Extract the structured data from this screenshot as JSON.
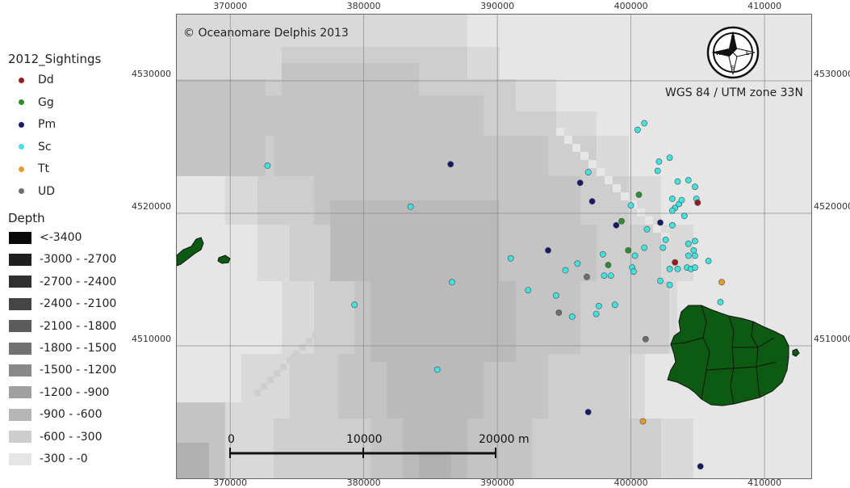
{
  "legend": {
    "sightings_title": "2012_Sightings",
    "species": [
      {
        "code": "Dd",
        "color": "#9c1c1c"
      },
      {
        "code": "Gg",
        "color": "#2f8f2f"
      },
      {
        "code": "Pm",
        "color": "#161a6e"
      },
      {
        "code": "Sc",
        "color": "#3fe3e0"
      },
      {
        "code": "Tt",
        "color": "#e89b2a"
      },
      {
        "code": "UD",
        "color": "#6e6e6e"
      }
    ],
    "depth_title": "Depth",
    "depth_classes": [
      {
        "label": "<-3400",
        "color": "#0a0a0a"
      },
      {
        "label": "-3000 - -2700",
        "color": "#1f1f1f"
      },
      {
        "label": "-2700 - -2400",
        "color": "#2f2f2f"
      },
      {
        "label": "-2400 - -2100",
        "color": "#454545"
      },
      {
        "label": "-2100 - -1800",
        "color": "#5c5c5c"
      },
      {
        "label": "-1800 - -1500",
        "color": "#727272"
      },
      {
        "label": "-1500 - -1200",
        "color": "#898989"
      },
      {
        "label": "-1200 - -900",
        "color": "#a0a0a0"
      },
      {
        "label": "-900 - -600",
        "color": "#b6b6b6"
      },
      {
        "label": "-600 - -300",
        "color": "#cdcdcd"
      },
      {
        "label": "-300 - -0",
        "color": "#e5e5e5"
      }
    ]
  },
  "map": {
    "copyright": "© Oceanomare Delphis 2013",
    "crs": "WGS 84 / UTM zone 33N",
    "land_color": "#0d5a12",
    "easting_ticks": [
      "370000",
      "380000",
      "390000",
      "400000",
      "410000"
    ],
    "northing_ticks": [
      "4530000",
      "4520000",
      "4510000"
    ],
    "scale_bar": {
      "labels": [
        "0",
        "10000",
        "20000 m"
      ]
    }
  },
  "chart_data": {
    "type": "scatter",
    "title": "",
    "xlabel": "",
    "ylabel": "",
    "xlim": [
      366000,
      413500
    ],
    "ylim": [
      4500000,
      4535000
    ],
    "series": [
      {
        "name": "Dd",
        "points": [
          [
            405000,
            4520800
          ],
          [
            403300,
            4516300
          ]
        ]
      },
      {
        "name": "Gg",
        "points": [
          [
            400600,
            4521400
          ],
          [
            399300,
            4519400
          ],
          [
            399800,
            4517200
          ],
          [
            398300,
            4516100
          ]
        ]
      },
      {
        "name": "Pm",
        "points": [
          [
            386500,
            4523700
          ],
          [
            396200,
            4522300
          ],
          [
            397100,
            4520900
          ],
          [
            398900,
            4519100
          ],
          [
            402200,
            4519300
          ],
          [
            393800,
            4517200
          ],
          [
            396800,
            4505000
          ],
          [
            405200,
            4500900
          ]
        ]
      },
      {
        "name": "Sc",
        "points": [
          [
            372800,
            4523600
          ],
          [
            383500,
            4520500
          ],
          [
            386600,
            4514800
          ],
          [
            379300,
            4513100
          ],
          [
            385500,
            4508200
          ],
          [
            391000,
            4516600
          ],
          [
            392300,
            4514200
          ],
          [
            394400,
            4513800
          ],
          [
            395100,
            4515700
          ],
          [
            396000,
            4516200
          ],
          [
            397400,
            4512400
          ],
          [
            397600,
            4513000
          ],
          [
            395600,
            4512200
          ],
          [
            398000,
            4515300
          ],
          [
            398500,
            4515300
          ],
          [
            398800,
            4513100
          ],
          [
            397900,
            4516900
          ],
          [
            396800,
            4523100
          ],
          [
            401000,
            4526800
          ],
          [
            400500,
            4526300
          ],
          [
            402100,
            4523900
          ],
          [
            402000,
            4523200
          ],
          [
            402900,
            4524200
          ],
          [
            403500,
            4522400
          ],
          [
            404300,
            4522500
          ],
          [
            404800,
            4522000
          ],
          [
            403100,
            4521100
          ],
          [
            403300,
            4520400
          ],
          [
            403600,
            4520700
          ],
          [
            403100,
            4520200
          ],
          [
            404000,
            4519800
          ],
          [
            404900,
            4521100
          ],
          [
            403800,
            4521000
          ],
          [
            403100,
            4519100
          ],
          [
            400000,
            4520600
          ],
          [
            401200,
            4518800
          ],
          [
            402600,
            4518000
          ],
          [
            402400,
            4517400
          ],
          [
            401000,
            4517400
          ],
          [
            400300,
            4516800
          ],
          [
            400100,
            4515900
          ],
          [
            400200,
            4515600
          ],
          [
            402900,
            4515800
          ],
          [
            403500,
            4515800
          ],
          [
            404200,
            4515900
          ],
          [
            404500,
            4515800
          ],
          [
            404800,
            4515900
          ],
          [
            404300,
            4516800
          ],
          [
            404700,
            4517200
          ],
          [
            404800,
            4516800
          ],
          [
            404300,
            4517700
          ],
          [
            404800,
            4517900
          ],
          [
            405800,
            4516400
          ],
          [
            402200,
            4514900
          ],
          [
            402900,
            4514600
          ],
          [
            406700,
            4513300
          ]
        ]
      },
      {
        "name": "Tt",
        "points": [
          [
            406800,
            4514800
          ],
          [
            400900,
            4504300
          ]
        ]
      },
      {
        "name": "UD",
        "points": [
          [
            396700,
            4515200
          ],
          [
            394600,
            4512500
          ],
          [
            401100,
            4510500
          ]
        ]
      }
    ]
  }
}
